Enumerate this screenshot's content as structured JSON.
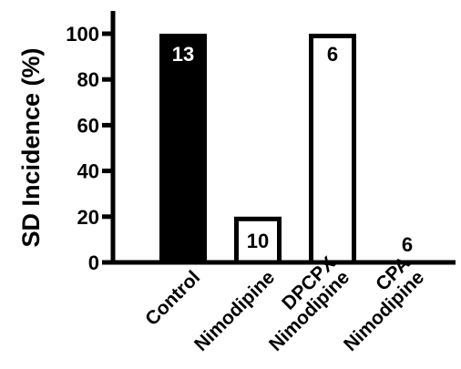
{
  "chart_data": {
    "type": "bar",
    "title": "",
    "xlabel": "",
    "ylabel": "SD Incidence (%)",
    "ylim": [
      0,
      100
    ],
    "yticks": [
      0,
      20,
      40,
      60,
      80,
      100
    ],
    "yticks_text": [
      "0",
      "20",
      "40",
      "60",
      "80",
      "100"
    ],
    "grid": false,
    "legend": "none",
    "categories": [
      {
        "line1": "Control",
        "line2": ""
      },
      {
        "line1": "Nimodipine",
        "line2": ""
      },
      {
        "line1": "DPCPX",
        "line2": "Nimodipine"
      },
      {
        "line1": "CPA",
        "line2": "Nimodipine"
      }
    ],
    "values": [
      100,
      20,
      100,
      0
    ],
    "n_labels": [
      "13",
      "10",
      "6",
      "6"
    ],
    "fills": [
      "#000000",
      "#ffffff",
      "#ffffff",
      "#ffffff"
    ],
    "label_colors": [
      "#ffffff",
      "#000000",
      "#000000",
      "#000000"
    ]
  }
}
